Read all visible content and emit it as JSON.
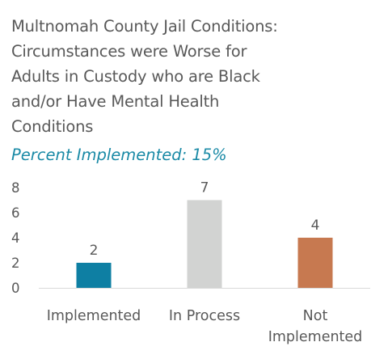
{
  "header": {
    "title_lines": [
      "Multnomah County Jail Conditions:",
      "Circumstances were Worse for",
      "Adults in Custody who are Black",
      "and/or Have Mental Health",
      "Conditions"
    ],
    "subtitle": "Percent Implemented: 15%"
  },
  "chart_data": {
    "type": "bar",
    "title": "Multnomah County Jail Conditions: Circumstances were Worse for Adults in Custody who are Black and/or Have Mental Health Conditions",
    "subtitle": "Percent Implemented: 15%",
    "categories": [
      "Implemented",
      "In Process",
      "Not Implemented"
    ],
    "category_lines": [
      [
        "Implemented"
      ],
      [
        "In Process"
      ],
      [
        "Not",
        "Implemented"
      ]
    ],
    "values": [
      2,
      7,
      4
    ],
    "colors": [
      "#0e7fa3",
      "#d2d3d2",
      "#c77950"
    ],
    "yticks": [
      0,
      2,
      4,
      6,
      8
    ],
    "ylim": [
      0,
      8
    ],
    "xlabel": "",
    "ylabel": "",
    "grid": false,
    "data_labels": true
  }
}
